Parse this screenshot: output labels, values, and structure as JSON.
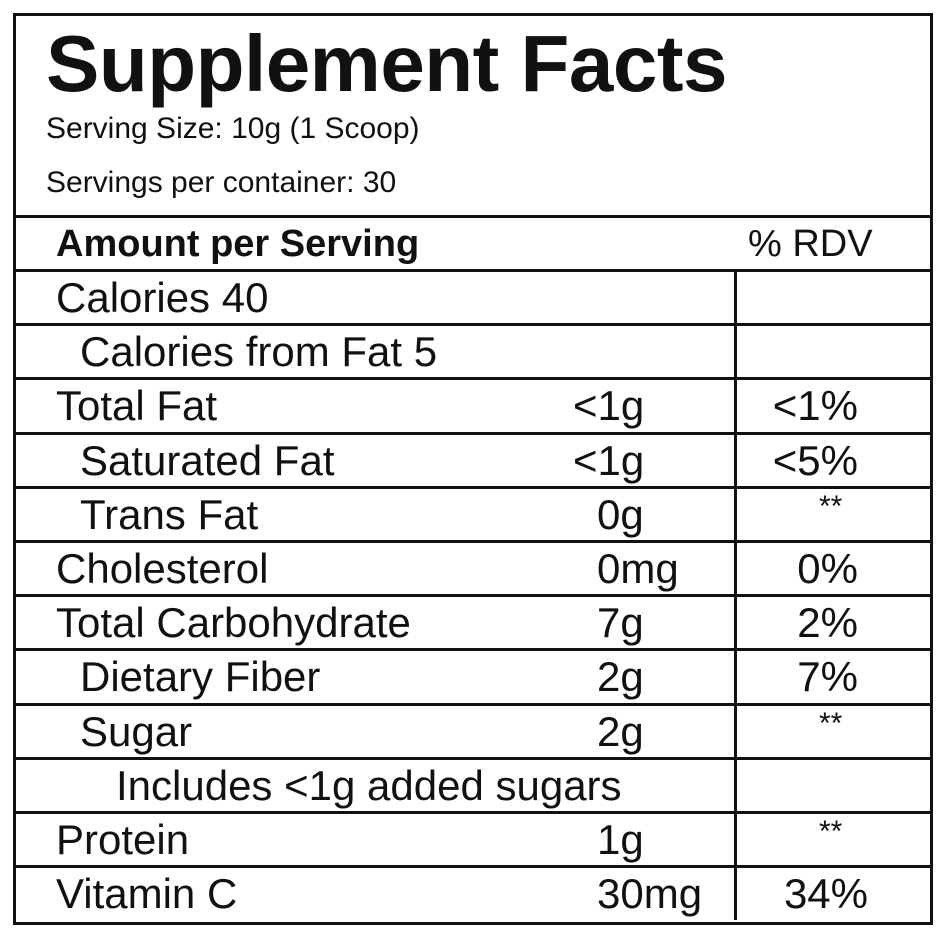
{
  "title": "Supplement Facts",
  "serving_size": "Serving Size: 10g (1 Scoop)",
  "servings_per_container": "Servings per container: 30",
  "header": {
    "amount": "Amount per Serving",
    "rdv": "% RDV"
  },
  "rows": [
    {
      "label": "Calories 40",
      "indent": 0,
      "amount": "",
      "rdv": ""
    },
    {
      "label": "Calories from Fat 5",
      "indent": 1,
      "amount": "",
      "rdv": ""
    },
    {
      "label": "Total Fat",
      "indent": 0,
      "amount": "<1g",
      "rdv": "<1%"
    },
    {
      "label": "Saturated Fat",
      "indent": 1,
      "amount": "<1g",
      "rdv": "<5%"
    },
    {
      "label": "Trans Fat",
      "indent": 1,
      "amount": "0g",
      "rdv": "**"
    },
    {
      "label": "Cholesterol",
      "indent": 0,
      "amount": "0mg",
      "rdv": "0%"
    },
    {
      "label": "Total Carbohydrate",
      "indent": 0,
      "amount": "7g",
      "rdv": "2%"
    },
    {
      "label": "Dietary Fiber",
      "indent": 1,
      "amount": "2g",
      "rdv": "7%"
    },
    {
      "label": "Sugar",
      "indent": 1,
      "amount": "2g",
      "rdv": "**"
    },
    {
      "label": "Includes <1g added sugars",
      "indent": 2,
      "amount": "",
      "rdv": ""
    },
    {
      "label": "Protein",
      "indent": 0,
      "amount": "1g",
      "rdv": "**"
    },
    {
      "label": "Vitamin C",
      "indent": 0,
      "amount": "30mg",
      "rdv": "34%"
    }
  ]
}
